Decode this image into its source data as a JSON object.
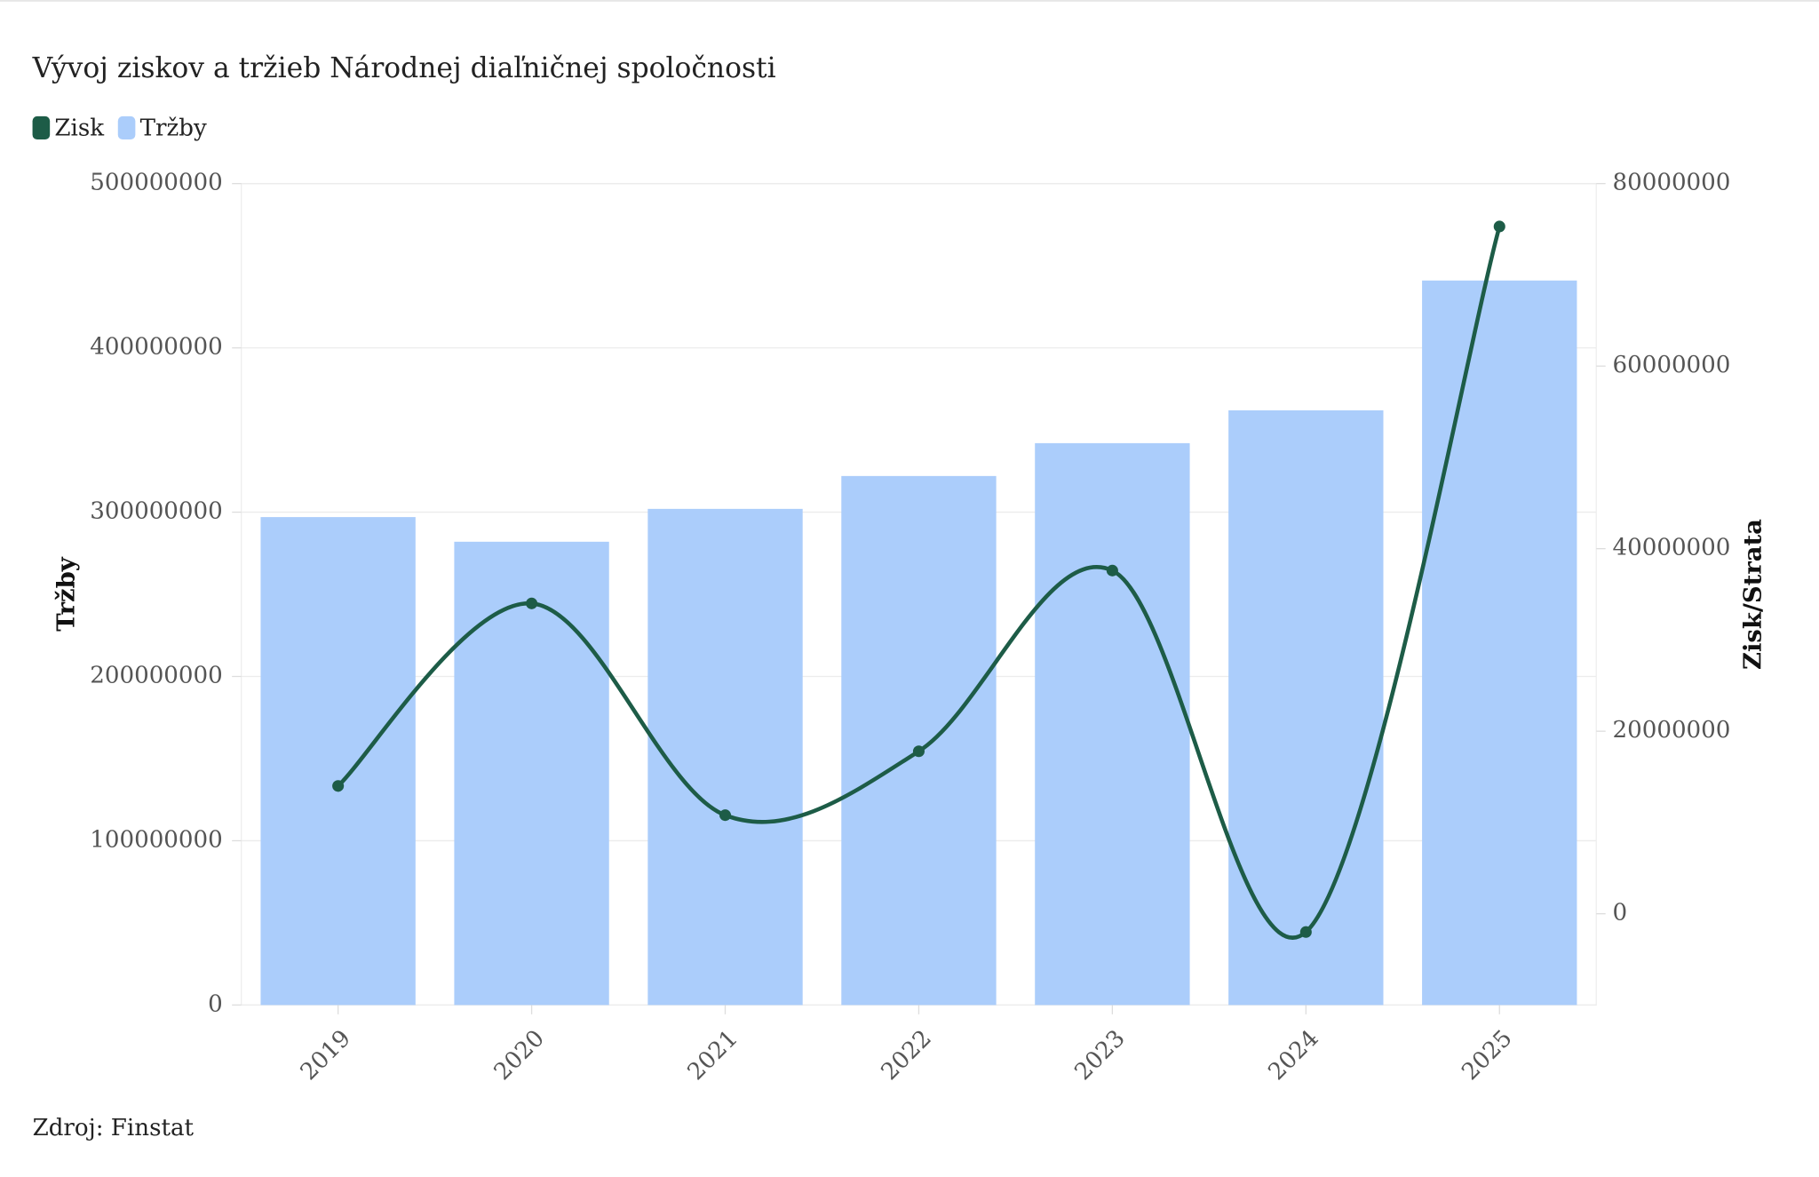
{
  "chart_data": {
    "type": "bar-line",
    "title": "Vývoj ziskov a tržieb Národnej diaľničnej spoločnosti",
    "categories": [
      "2019",
      "2020",
      "2021",
      "2022",
      "2023",
      "2024",
      "2025"
    ],
    "series": [
      {
        "name": "Zisk",
        "type": "line",
        "axis": "y2",
        "color": "#1d5c47",
        "values": [
          14000000,
          34000000,
          10800000,
          17800000,
          37600000,
          -2000000,
          75300000
        ]
      },
      {
        "name": "Tržby",
        "type": "bar",
        "color": "#abcdfb",
        "values": [
          297000000,
          282000000,
          302000000,
          322000000,
          342000000,
          362000000,
          441000000
        ]
      }
    ],
    "y_label": "Tržby",
    "y2_label": "Zisk/Strata",
    "ylim": [
      0,
      500000000
    ],
    "yticks": [
      0,
      100000000,
      200000000,
      300000000,
      400000000,
      500000000
    ],
    "y2lim": [
      -10000000,
      80000000
    ],
    "y2ticks": [
      0,
      20000000,
      40000000,
      60000000,
      80000000
    ],
    "grid": true,
    "legend": "top-left",
    "source": "Zdroj: Finstat"
  }
}
